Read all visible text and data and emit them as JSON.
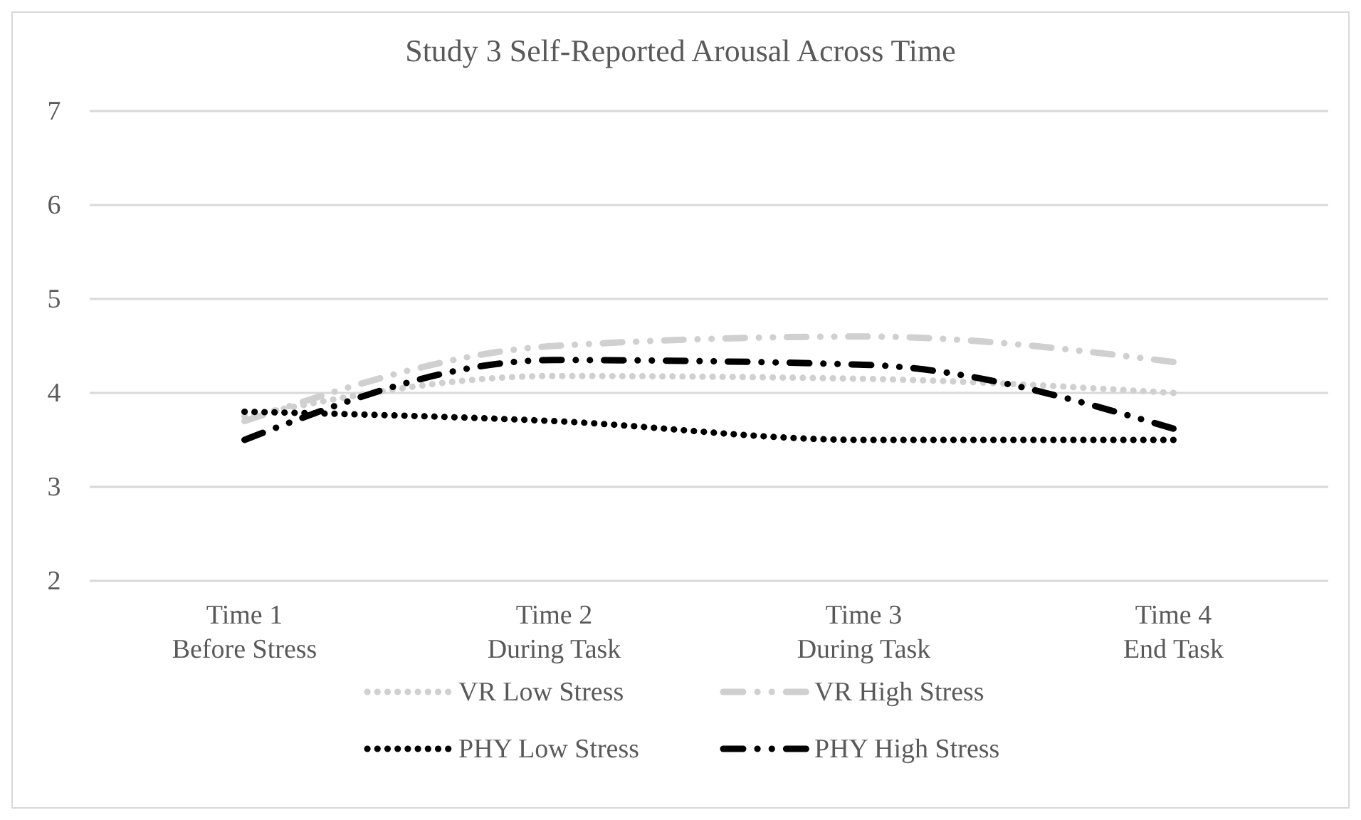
{
  "chart_data": {
    "type": "line",
    "title": "Study 3 Self-Reported Arousal Across Time",
    "categories": [
      "Time 1\nBefore Stress",
      "Time 2\nDuring Task",
      "Time 3\nDuring Task",
      "Time 4\nEnd Task"
    ],
    "series": [
      {
        "name": "VR Low Stress",
        "color": "#d0d0d0",
        "line_style": "dotted",
        "values": [
          3.75,
          4.18,
          4.15,
          4.0
        ]
      },
      {
        "name": "VR High Stress",
        "color": "#d0d0d0",
        "line_style": "dashed",
        "values": [
          3.7,
          4.5,
          4.6,
          4.33
        ]
      },
      {
        "name": "PHY Low Stress",
        "color": "#000000",
        "line_style": "dotted",
        "values": [
          3.8,
          3.7,
          3.5,
          3.5
        ]
      },
      {
        "name": "PHY High Stress",
        "color": "#000000",
        "line_style": "dashed",
        "values": [
          3.5,
          4.35,
          4.3,
          3.62
        ]
      }
    ],
    "ylim": [
      2,
      7
    ],
    "yticks": [
      2,
      3,
      4,
      5,
      6,
      7
    ],
    "grid": "y",
    "legend": "bottom",
    "marker": "none"
  }
}
